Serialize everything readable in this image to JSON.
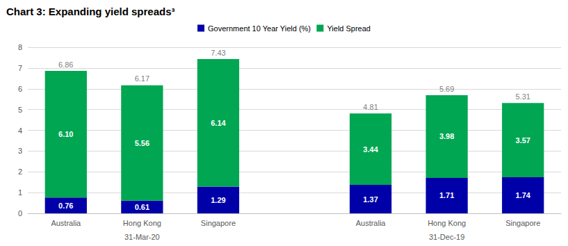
{
  "chart_data": {
    "type": "bar",
    "title": "Chart 3: Expanding yield spreads³",
    "categories": [
      "Australia",
      "Hong Kong",
      "Singapore",
      null,
      "Australia",
      "Hong Kong",
      "Singapore"
    ],
    "group_labels": [
      "31-Mar-20",
      "31-Dec-19"
    ],
    "series": [
      {
        "name": "Government 10 Year Yield (%)",
        "color": "#0000a8",
        "values": [
          0.76,
          0.61,
          1.29,
          null,
          1.37,
          1.71,
          1.74
        ]
      },
      {
        "name": "Yield Spread",
        "color": "#00a651",
        "values": [
          6.1,
          5.56,
          6.14,
          null,
          3.44,
          3.98,
          3.57
        ],
        "value_labels": [
          "6.10",
          "5.56",
          "6.14",
          null,
          "3.44",
          "3.98",
          "3.57"
        ]
      }
    ],
    "totals": [
      6.86,
      6.17,
      7.43,
      null,
      4.81,
      5.69,
      5.31
    ],
    "ylim": [
      0,
      8
    ],
    "yticks": [
      0,
      1,
      2,
      3,
      4,
      5,
      6,
      7,
      8
    ],
    "stacked": true,
    "data_labels": true,
    "grid": true,
    "legend": "top"
  }
}
